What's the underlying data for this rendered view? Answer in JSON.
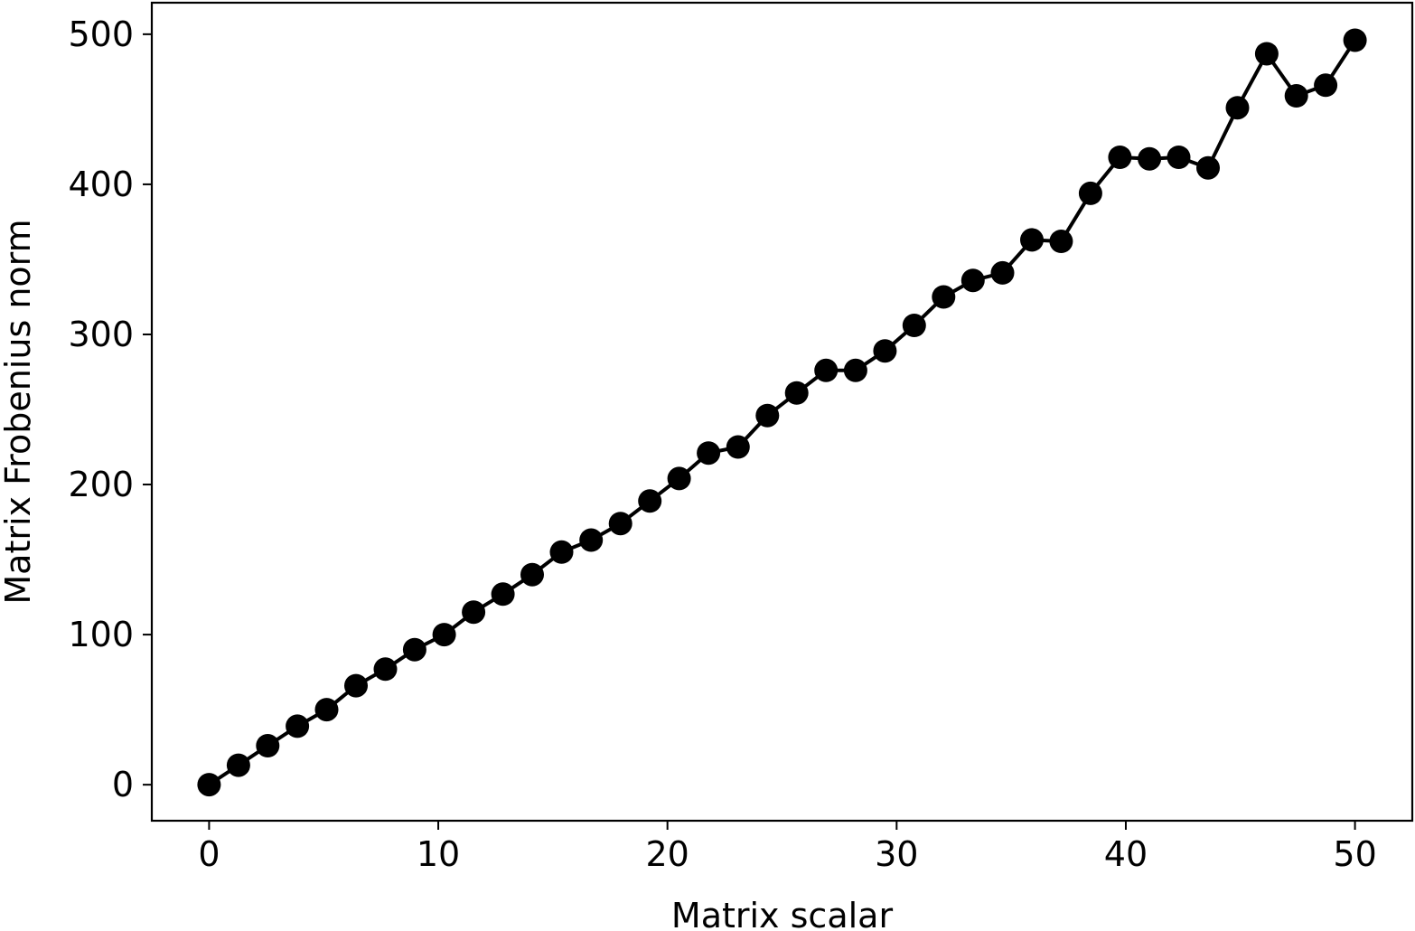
{
  "chart_data": {
    "type": "line",
    "title": "",
    "xlabel": "Matrix scalar",
    "ylabel": "Matrix Frobenius norm",
    "xlim": [
      -2.5,
      52.5
    ],
    "ylim": [
      -24,
      521
    ],
    "xticks": [
      0,
      10,
      20,
      30,
      40,
      50
    ],
    "yticks": [
      0,
      100,
      200,
      300,
      400,
      500
    ],
    "xtick_labels": [
      "0",
      "10",
      "20",
      "30",
      "40",
      "50"
    ],
    "ytick_labels": [
      "0",
      "100",
      "200",
      "300",
      "400",
      "500"
    ],
    "grid": false,
    "line_color": "#000000",
    "marker": "circle",
    "series": [
      {
        "x": [
          0.0,
          1.28,
          2.56,
          3.85,
          5.13,
          6.41,
          7.69,
          8.97,
          10.26,
          11.54,
          12.82,
          14.1,
          15.38,
          16.67,
          17.95,
          19.23,
          20.51,
          21.79,
          23.08,
          24.36,
          25.64,
          26.92,
          28.21,
          29.49,
          30.77,
          32.05,
          33.33,
          34.62,
          35.9,
          37.18,
          38.46,
          39.74,
          41.03,
          42.31,
          43.59,
          44.87,
          46.15,
          47.44,
          48.72,
          50.0
        ],
        "y": [
          0,
          13,
          26,
          39,
          50,
          66,
          77,
          90,
          100,
          115,
          127,
          140,
          155,
          163,
          174,
          189,
          204,
          221,
          225,
          246,
          261,
          276,
          276,
          289,
          306,
          325,
          336,
          341,
          363,
          362,
          394,
          418,
          417,
          418,
          411,
          451,
          487,
          459,
          466,
          496
        ]
      }
    ]
  }
}
